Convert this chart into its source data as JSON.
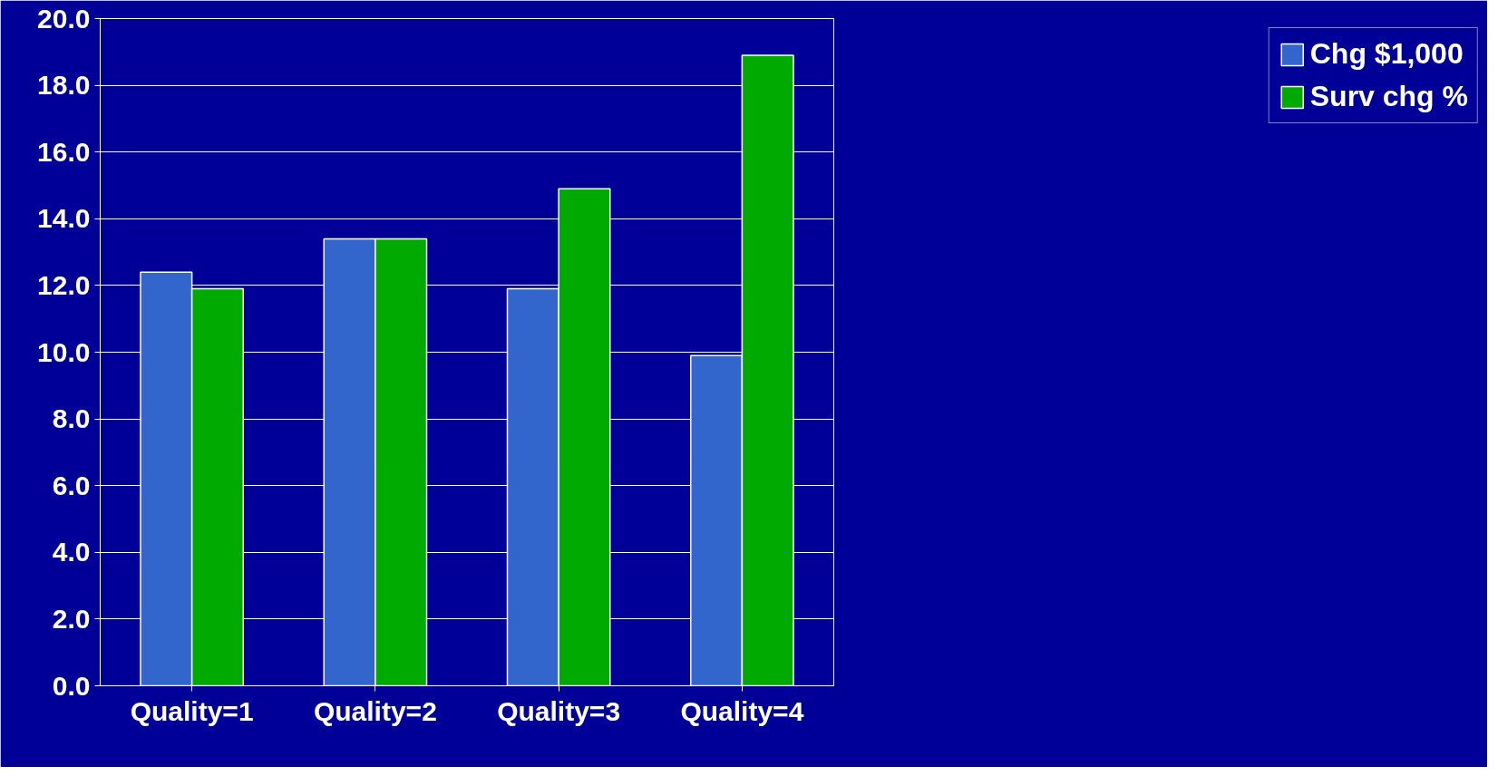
{
  "chart_data": {
    "type": "bar",
    "categories": [
      "Quality=1",
      "Quality=2",
      "Quality=3",
      "Quality=4"
    ],
    "series": [
      {
        "name": "Chg $1,000",
        "color": "#3366cc",
        "values": [
          12.4,
          13.4,
          11.9,
          9.9
        ]
      },
      {
        "name": "Surv chg %",
        "color": "#00aa00",
        "values": [
          11.9,
          13.4,
          14.9,
          18.9
        ]
      }
    ],
    "ylim": [
      0,
      20
    ],
    "yticks": [
      {
        "value": 0,
        "label": "0.0"
      },
      {
        "value": 2,
        "label": "2.0"
      },
      {
        "value": 4,
        "label": "4.0"
      },
      {
        "value": 6,
        "label": "6.0"
      },
      {
        "value": 8,
        "label": "8.0"
      },
      {
        "value": 10,
        "label": "10.0"
      },
      {
        "value": 12,
        "label": "12.0"
      },
      {
        "value": 14,
        "label": "14.0"
      },
      {
        "value": 16,
        "label": "16.0"
      },
      {
        "value": 18,
        "label": "18.0"
      },
      {
        "value": 20,
        "label": "20.0"
      }
    ],
    "grid": "y",
    "legend": "right"
  }
}
